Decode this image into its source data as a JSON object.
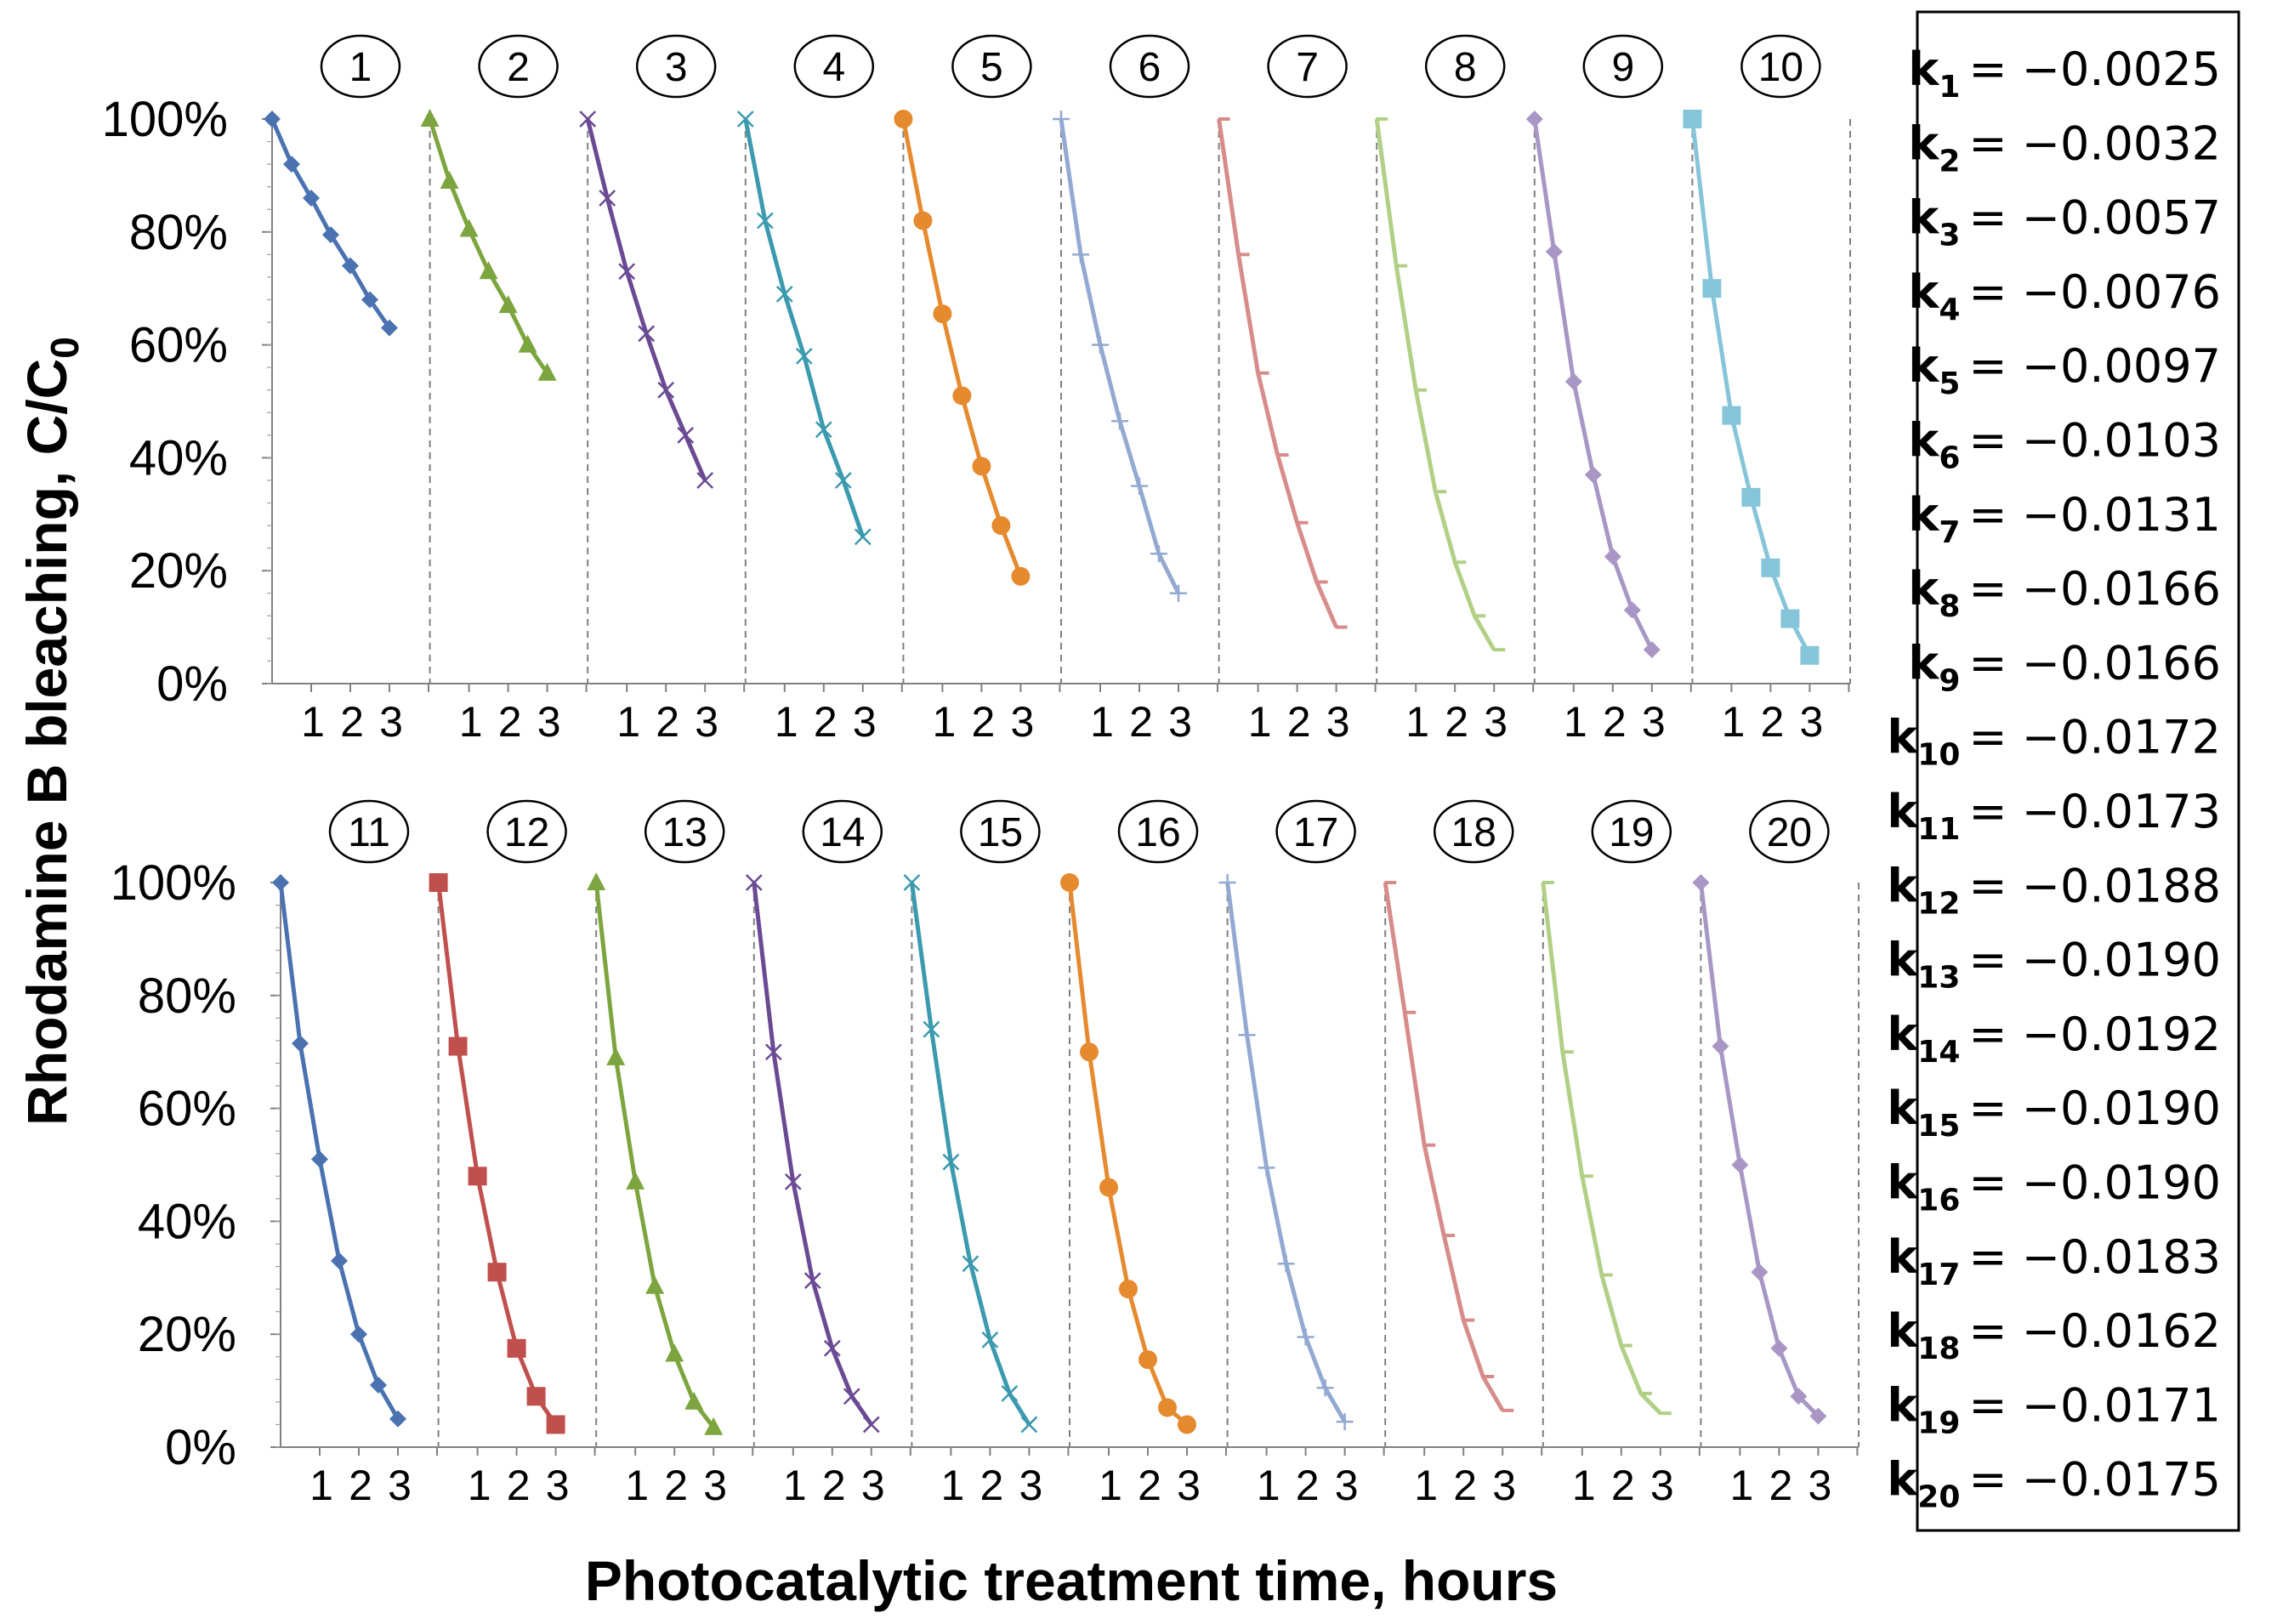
{
  "chart_data": {
    "type": "line",
    "ylabel": "Rhodamine B bleaching, C/C",
    "ylabel_subscript": "0",
    "xlabel": "Photocatalytic treatment time, hours",
    "yticks": [
      "100%",
      "80%",
      "60%",
      "40%",
      "20%",
      "0%"
    ],
    "ylim": [
      0,
      100
    ],
    "x_times_hours": [
      0,
      0.5,
      1,
      1.5,
      2,
      2.5,
      3
    ],
    "xticks": [
      "1",
      "2",
      "3"
    ],
    "x_units_per_hour": [
      0,
      1,
      2,
      3
    ],
    "series": [
      {
        "name": "1",
        "color": "#4a72b0",
        "marker": "diamond",
        "values": [
          100,
          92,
          86,
          79.5,
          74,
          68,
          63
        ]
      },
      {
        "name": "2",
        "color": "#7da53f",
        "marker": "triangle",
        "values": [
          100,
          89,
          80.5,
          73,
          67,
          60,
          55
        ]
      },
      {
        "name": "3",
        "color": "#6a4a93",
        "marker": "x",
        "values": [
          100,
          86,
          73,
          62,
          52,
          44,
          36
        ]
      },
      {
        "name": "4",
        "color": "#3b9aae",
        "marker": "x",
        "values": [
          100,
          82,
          69,
          58,
          45,
          36,
          26
        ]
      },
      {
        "name": "5",
        "color": "#e58a2f",
        "marker": "circle",
        "values": [
          100,
          82,
          65.5,
          51,
          38.5,
          28,
          19
        ]
      },
      {
        "name": "6",
        "color": "#93a9d1",
        "marker": "plus",
        "values": [
          100,
          76,
          60,
          46.5,
          35,
          23,
          16
        ]
      },
      {
        "name": "7",
        "color": "#d68c8a",
        "marker": "dash",
        "values": [
          100,
          76,
          55,
          40.5,
          28.5,
          18,
          10
        ]
      },
      {
        "name": "8",
        "color": "#b2cf86",
        "marker": "dash",
        "values": [
          100,
          74,
          52,
          34,
          21.5,
          12,
          6
        ]
      },
      {
        "name": "9",
        "color": "#a896c4",
        "marker": "diamond",
        "values": [
          100,
          76.5,
          53.5,
          37,
          22.5,
          13,
          6
        ]
      },
      {
        "name": "10",
        "color": "#86c5d9",
        "marker": "square",
        "values": [
          100,
          70,
          47.5,
          33,
          20.5,
          11.5,
          5
        ]
      },
      {
        "name": "11",
        "color": "#4a72b0",
        "marker": "diamond",
        "values": [
          100,
          71.5,
          51,
          33,
          20,
          11,
          5
        ]
      },
      {
        "name": "12",
        "color": "#c0504d",
        "marker": "square",
        "values": [
          100,
          71,
          48,
          31,
          17.5,
          9,
          4
        ]
      },
      {
        "name": "13",
        "color": "#7da53f",
        "marker": "triangle",
        "values": [
          100,
          69,
          47,
          28.5,
          16.5,
          8,
          3.5
        ]
      },
      {
        "name": "14",
        "color": "#6a4a93",
        "marker": "x",
        "values": [
          100,
          70,
          47,
          29.5,
          17.5,
          9,
          4
        ]
      },
      {
        "name": "15",
        "color": "#3b9aae",
        "marker": "x",
        "values": [
          100,
          74,
          50.5,
          32.5,
          19,
          9.5,
          4
        ]
      },
      {
        "name": "16",
        "color": "#e58a2f",
        "marker": "circle",
        "values": [
          100,
          70,
          46,
          28,
          15.5,
          7,
          4
        ]
      },
      {
        "name": "17",
        "color": "#93a9d1",
        "marker": "plus",
        "values": [
          100,
          73,
          49.5,
          32.5,
          19.5,
          10.5,
          4.5
        ]
      },
      {
        "name": "18",
        "color": "#d68c8a",
        "marker": "dash",
        "values": [
          100,
          77,
          53.5,
          37.5,
          22.5,
          12.5,
          6.5
        ]
      },
      {
        "name": "19",
        "color": "#b2cf86",
        "marker": "dash",
        "values": [
          100,
          70,
          48,
          30.5,
          18,
          9.5,
          6
        ]
      },
      {
        "name": "20",
        "color": "#a896c4",
        "marker": "diamond",
        "values": [
          100,
          71,
          50,
          31,
          17.5,
          9,
          5.5
        ]
      }
    ],
    "rate_constants": [
      {
        "sub": "1",
        "value": "= −0.0025"
      },
      {
        "sub": "2",
        "value": "= −0.0032"
      },
      {
        "sub": "3",
        "value": "= −0.0057"
      },
      {
        "sub": "4",
        "value": "= −0.0076"
      },
      {
        "sub": "5",
        "value": "= −0.0097"
      },
      {
        "sub": "6",
        "value": "= −0.0103"
      },
      {
        "sub": "7",
        "value": "= −0.0131"
      },
      {
        "sub": "8",
        "value": "= −0.0166"
      },
      {
        "sub": "9",
        "value": "= −0.0166"
      },
      {
        "sub": "10",
        "value": "= −0.0172"
      },
      {
        "sub": "11",
        "value": "= −0.0173"
      },
      {
        "sub": "12",
        "value": "= −0.0188"
      },
      {
        "sub": "13",
        "value": "= −0.0190"
      },
      {
        "sub": "14",
        "value": "= −0.0192"
      },
      {
        "sub": "15",
        "value": "= −0.0190"
      },
      {
        "sub": "16",
        "value": "= −0.0190"
      },
      {
        "sub": "17",
        "value": "= −0.0183"
      },
      {
        "sub": "18",
        "value": "= −0.0162"
      },
      {
        "sub": "19",
        "value": "= −0.0171"
      },
      {
        "sub": "20",
        "value": "= −0.0175"
      }
    ],
    "rate_symbol": "k"
  }
}
